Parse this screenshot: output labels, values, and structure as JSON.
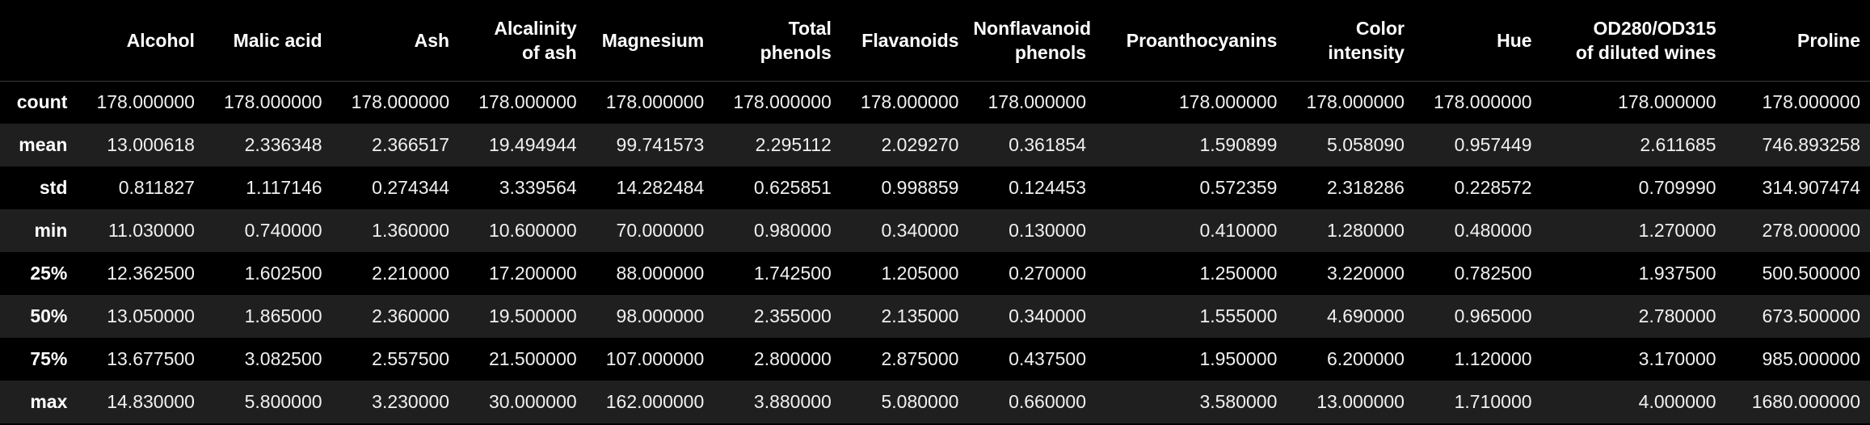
{
  "table": {
    "index_header": "",
    "columns": [
      "Alcohol",
      "Malic acid",
      "Ash",
      "Alcalinity\nof ash",
      "Magnesium",
      "Total\nphenols",
      "Flavanoids",
      "Nonflavanoid\nphenols",
      "Proanthocyanins",
      "Color\nintensity",
      "Hue",
      "OD280/OD315\nof diluted wines",
      "Proline"
    ],
    "rows": [
      {
        "label": "count",
        "values": [
          "178.000000",
          "178.000000",
          "178.000000",
          "178.000000",
          "178.000000",
          "178.000000",
          "178.000000",
          "178.000000",
          "178.000000",
          "178.000000",
          "178.000000",
          "178.000000",
          "178.000000"
        ]
      },
      {
        "label": "mean",
        "values": [
          "13.000618",
          "2.336348",
          "2.366517",
          "19.494944",
          "99.741573",
          "2.295112",
          "2.029270",
          "0.361854",
          "1.590899",
          "5.058090",
          "0.957449",
          "2.611685",
          "746.893258"
        ]
      },
      {
        "label": "std",
        "values": [
          "0.811827",
          "1.117146",
          "0.274344",
          "3.339564",
          "14.282484",
          "0.625851",
          "0.998859",
          "0.124453",
          "0.572359",
          "2.318286",
          "0.228572",
          "0.709990",
          "314.907474"
        ]
      },
      {
        "label": "min",
        "values": [
          "11.030000",
          "0.740000",
          "1.360000",
          "10.600000",
          "70.000000",
          "0.980000",
          "0.340000",
          "0.130000",
          "0.410000",
          "1.280000",
          "0.480000",
          "1.270000",
          "278.000000"
        ]
      },
      {
        "label": "25%",
        "values": [
          "12.362500",
          "1.602500",
          "2.210000",
          "17.200000",
          "88.000000",
          "1.742500",
          "1.205000",
          "0.270000",
          "1.250000",
          "3.220000",
          "0.782500",
          "1.937500",
          "500.500000"
        ]
      },
      {
        "label": "50%",
        "values": [
          "13.050000",
          "1.865000",
          "2.360000",
          "19.500000",
          "98.000000",
          "2.355000",
          "2.135000",
          "0.340000",
          "1.555000",
          "4.690000",
          "0.965000",
          "2.780000",
          "673.500000"
        ]
      },
      {
        "label": "75%",
        "values": [
          "13.677500",
          "3.082500",
          "2.557500",
          "21.500000",
          "107.000000",
          "2.800000",
          "2.875000",
          "0.437500",
          "1.950000",
          "6.200000",
          "1.120000",
          "3.170000",
          "985.000000"
        ]
      },
      {
        "label": "max",
        "values": [
          "14.830000",
          "5.800000",
          "3.230000",
          "30.000000",
          "162.000000",
          "3.880000",
          "5.080000",
          "0.660000",
          "3.580000",
          "13.000000",
          "1.710000",
          "4.000000",
          "1680.000000"
        ]
      }
    ]
  }
}
